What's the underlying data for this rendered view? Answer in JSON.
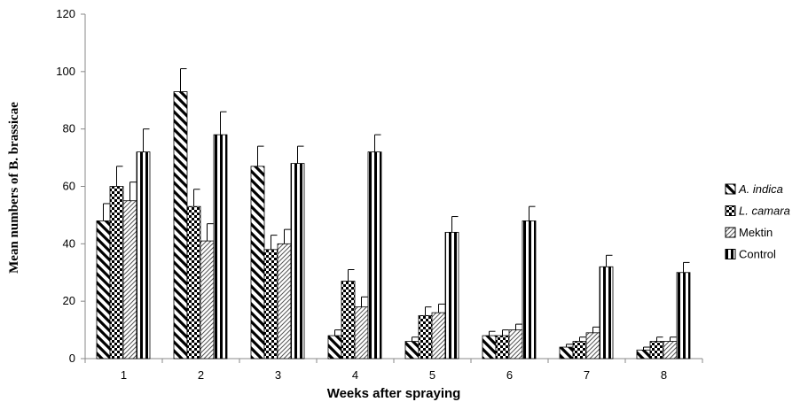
{
  "chart_data": {
    "type": "bar",
    "xlabel": "Weeks after spraying",
    "ylabel": "Mean numbers of B. brassicae",
    "ylim": [
      0,
      120
    ],
    "yticks": [
      0,
      20,
      40,
      60,
      80,
      100,
      120
    ],
    "categories": [
      "1",
      "2",
      "3",
      "4",
      "5",
      "6",
      "7",
      "8"
    ],
    "grid": false,
    "legend_position": "right",
    "series": [
      {
        "name": "A. indica",
        "italic": true,
        "pattern": "diag-left",
        "values": [
          48,
          93,
          67,
          8,
          6,
          8,
          4,
          3
        ],
        "errors": [
          6,
          8,
          7,
          2,
          1.5,
          1.5,
          1,
          1
        ]
      },
      {
        "name": "L. camara",
        "italic": true,
        "pattern": "checker",
        "values": [
          60,
          53,
          38,
          27,
          15,
          8,
          6,
          6
        ],
        "errors": [
          7,
          6,
          5,
          4,
          3,
          2,
          1.5,
          1.5
        ]
      },
      {
        "name": "Mektin",
        "italic": false,
        "pattern": "diag-right",
        "values": [
          55,
          41,
          40,
          18,
          16,
          10,
          9,
          6
        ],
        "errors": [
          6.5,
          6,
          5,
          3.5,
          3,
          2,
          2,
          1.5
        ]
      },
      {
        "name": "Control",
        "italic": false,
        "pattern": "vertical",
        "values": [
          72,
          78,
          68,
          72,
          44,
          48,
          32,
          30
        ],
        "errors": [
          8,
          8,
          6,
          6,
          5.5,
          5,
          4,
          3.5
        ]
      }
    ]
  }
}
